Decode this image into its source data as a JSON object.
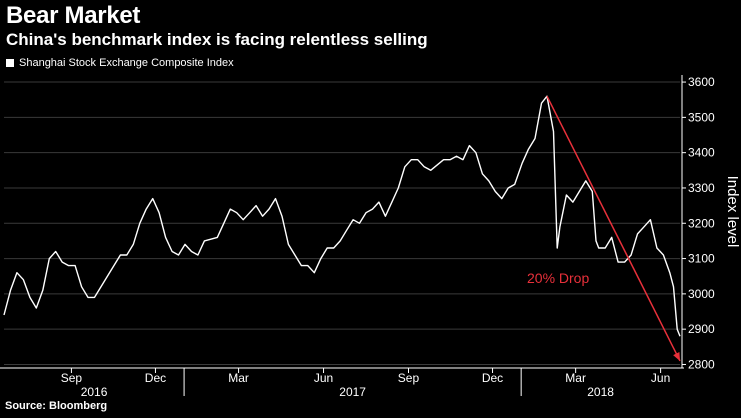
{
  "chart_data": {
    "type": "line",
    "title": "Bear Market",
    "subtitle": "China's benchmark index is facing relentless selling",
    "source": "Source: Bloomberg",
    "ylabel": "Index level",
    "ylim": [
      2790,
      3620
    ],
    "yticks": [
      2800,
      2900,
      3000,
      3100,
      3200,
      3300,
      3400,
      3500,
      3600
    ],
    "xrange": [
      "2016-06-20",
      "2018-06-22"
    ],
    "grid": true,
    "legend_position": "top-left",
    "month_ticks": [
      {
        "date": "2016-09-01",
        "label": "Sep"
      },
      {
        "date": "2016-12-01",
        "label": "Dec"
      },
      {
        "date": "2017-03-01",
        "label": "Mar"
      },
      {
        "date": "2017-06-01",
        "label": "Jun"
      },
      {
        "date": "2017-09-01",
        "label": "Sep"
      },
      {
        "date": "2017-12-01",
        "label": "Dec"
      },
      {
        "date": "2018-03-01",
        "label": "Mar"
      },
      {
        "date": "2018-06-01",
        "label": "Jun"
      }
    ],
    "year_ticks": [
      {
        "date": "2016-06-20",
        "label": "2016"
      },
      {
        "date": "2017-01-01",
        "label": "2017"
      },
      {
        "date": "2018-01-01",
        "label": "2018"
      }
    ],
    "series": [
      {
        "name": "Shanghai Stock Exchange Composite Index",
        "color": "#ffffff",
        "points": [
          [
            "2016-06-20",
            2940
          ],
          [
            "2016-06-27",
            3010
          ],
          [
            "2016-07-04",
            3060
          ],
          [
            "2016-07-11",
            3040
          ],
          [
            "2016-07-18",
            2990
          ],
          [
            "2016-07-25",
            2960
          ],
          [
            "2016-08-01",
            3010
          ],
          [
            "2016-08-08",
            3100
          ],
          [
            "2016-08-15",
            3120
          ],
          [
            "2016-08-22",
            3090
          ],
          [
            "2016-08-29",
            3080
          ],
          [
            "2016-09-05",
            3080
          ],
          [
            "2016-09-12",
            3020
          ],
          [
            "2016-09-19",
            2990
          ],
          [
            "2016-09-26",
            2990
          ],
          [
            "2016-10-10",
            3050
          ],
          [
            "2016-10-17",
            3080
          ],
          [
            "2016-10-24",
            3110
          ],
          [
            "2016-10-31",
            3110
          ],
          [
            "2016-11-07",
            3140
          ],
          [
            "2016-11-14",
            3200
          ],
          [
            "2016-11-21",
            3240
          ],
          [
            "2016-11-28",
            3270
          ],
          [
            "2016-12-05",
            3230
          ],
          [
            "2016-12-12",
            3160
          ],
          [
            "2016-12-19",
            3120
          ],
          [
            "2016-12-26",
            3110
          ],
          [
            "2017-01-02",
            3140
          ],
          [
            "2017-01-09",
            3120
          ],
          [
            "2017-01-16",
            3110
          ],
          [
            "2017-01-23",
            3150
          ],
          [
            "2017-02-06",
            3160
          ],
          [
            "2017-02-13",
            3200
          ],
          [
            "2017-02-20",
            3240
          ],
          [
            "2017-02-27",
            3230
          ],
          [
            "2017-03-06",
            3210
          ],
          [
            "2017-03-13",
            3230
          ],
          [
            "2017-03-20",
            3250
          ],
          [
            "2017-03-27",
            3220
          ],
          [
            "2017-04-03",
            3240
          ],
          [
            "2017-04-10",
            3270
          ],
          [
            "2017-04-17",
            3220
          ],
          [
            "2017-04-24",
            3140
          ],
          [
            "2017-05-01",
            3110
          ],
          [
            "2017-05-08",
            3080
          ],
          [
            "2017-05-15",
            3080
          ],
          [
            "2017-05-22",
            3060
          ],
          [
            "2017-05-29",
            3100
          ],
          [
            "2017-06-05",
            3130
          ],
          [
            "2017-06-12",
            3130
          ],
          [
            "2017-06-19",
            3150
          ],
          [
            "2017-06-26",
            3180
          ],
          [
            "2017-07-03",
            3210
          ],
          [
            "2017-07-10",
            3200
          ],
          [
            "2017-07-17",
            3230
          ],
          [
            "2017-07-24",
            3240
          ],
          [
            "2017-07-31",
            3260
          ],
          [
            "2017-08-07",
            3220
          ],
          [
            "2017-08-14",
            3260
          ],
          [
            "2017-08-21",
            3300
          ],
          [
            "2017-08-28",
            3360
          ],
          [
            "2017-09-04",
            3380
          ],
          [
            "2017-09-11",
            3380
          ],
          [
            "2017-09-18",
            3360
          ],
          [
            "2017-09-25",
            3350
          ],
          [
            "2017-10-09",
            3380
          ],
          [
            "2017-10-16",
            3380
          ],
          [
            "2017-10-23",
            3390
          ],
          [
            "2017-10-30",
            3380
          ],
          [
            "2017-11-06",
            3420
          ],
          [
            "2017-11-13",
            3400
          ],
          [
            "2017-11-20",
            3340
          ],
          [
            "2017-11-27",
            3320
          ],
          [
            "2017-12-04",
            3290
          ],
          [
            "2017-12-11",
            3270
          ],
          [
            "2017-12-18",
            3300
          ],
          [
            "2017-12-25",
            3310
          ],
          [
            "2018-01-02",
            3370
          ],
          [
            "2018-01-09",
            3410
          ],
          [
            "2018-01-16",
            3440
          ],
          [
            "2018-01-23",
            3540
          ],
          [
            "2018-01-29",
            3560
          ],
          [
            "2018-02-05",
            3460
          ],
          [
            "2018-02-09",
            3130
          ],
          [
            "2018-02-12",
            3190
          ],
          [
            "2018-02-19",
            3280
          ],
          [
            "2018-02-26",
            3260
          ],
          [
            "2018-03-05",
            3290
          ],
          [
            "2018-03-12",
            3320
          ],
          [
            "2018-03-19",
            3290
          ],
          [
            "2018-03-23",
            3150
          ],
          [
            "2018-03-26",
            3130
          ],
          [
            "2018-04-02",
            3130
          ],
          [
            "2018-04-09",
            3160
          ],
          [
            "2018-04-16",
            3090
          ],
          [
            "2018-04-23",
            3090
          ],
          [
            "2018-04-30",
            3110
          ],
          [
            "2018-05-07",
            3170
          ],
          [
            "2018-05-14",
            3190
          ],
          [
            "2018-05-21",
            3210
          ],
          [
            "2018-05-28",
            3130
          ],
          [
            "2018-06-04",
            3110
          ],
          [
            "2018-06-11",
            3060
          ],
          [
            "2018-06-15",
            3020
          ],
          [
            "2018-06-19",
            2900
          ],
          [
            "2018-06-22",
            2880
          ]
        ]
      }
    ],
    "annotations": [
      {
        "text": "20% Drop",
        "color": "#e8303a",
        "arrow_from": [
          "2018-01-29",
          3560
        ],
        "arrow_to": [
          "2018-06-22",
          2810
        ]
      }
    ]
  }
}
